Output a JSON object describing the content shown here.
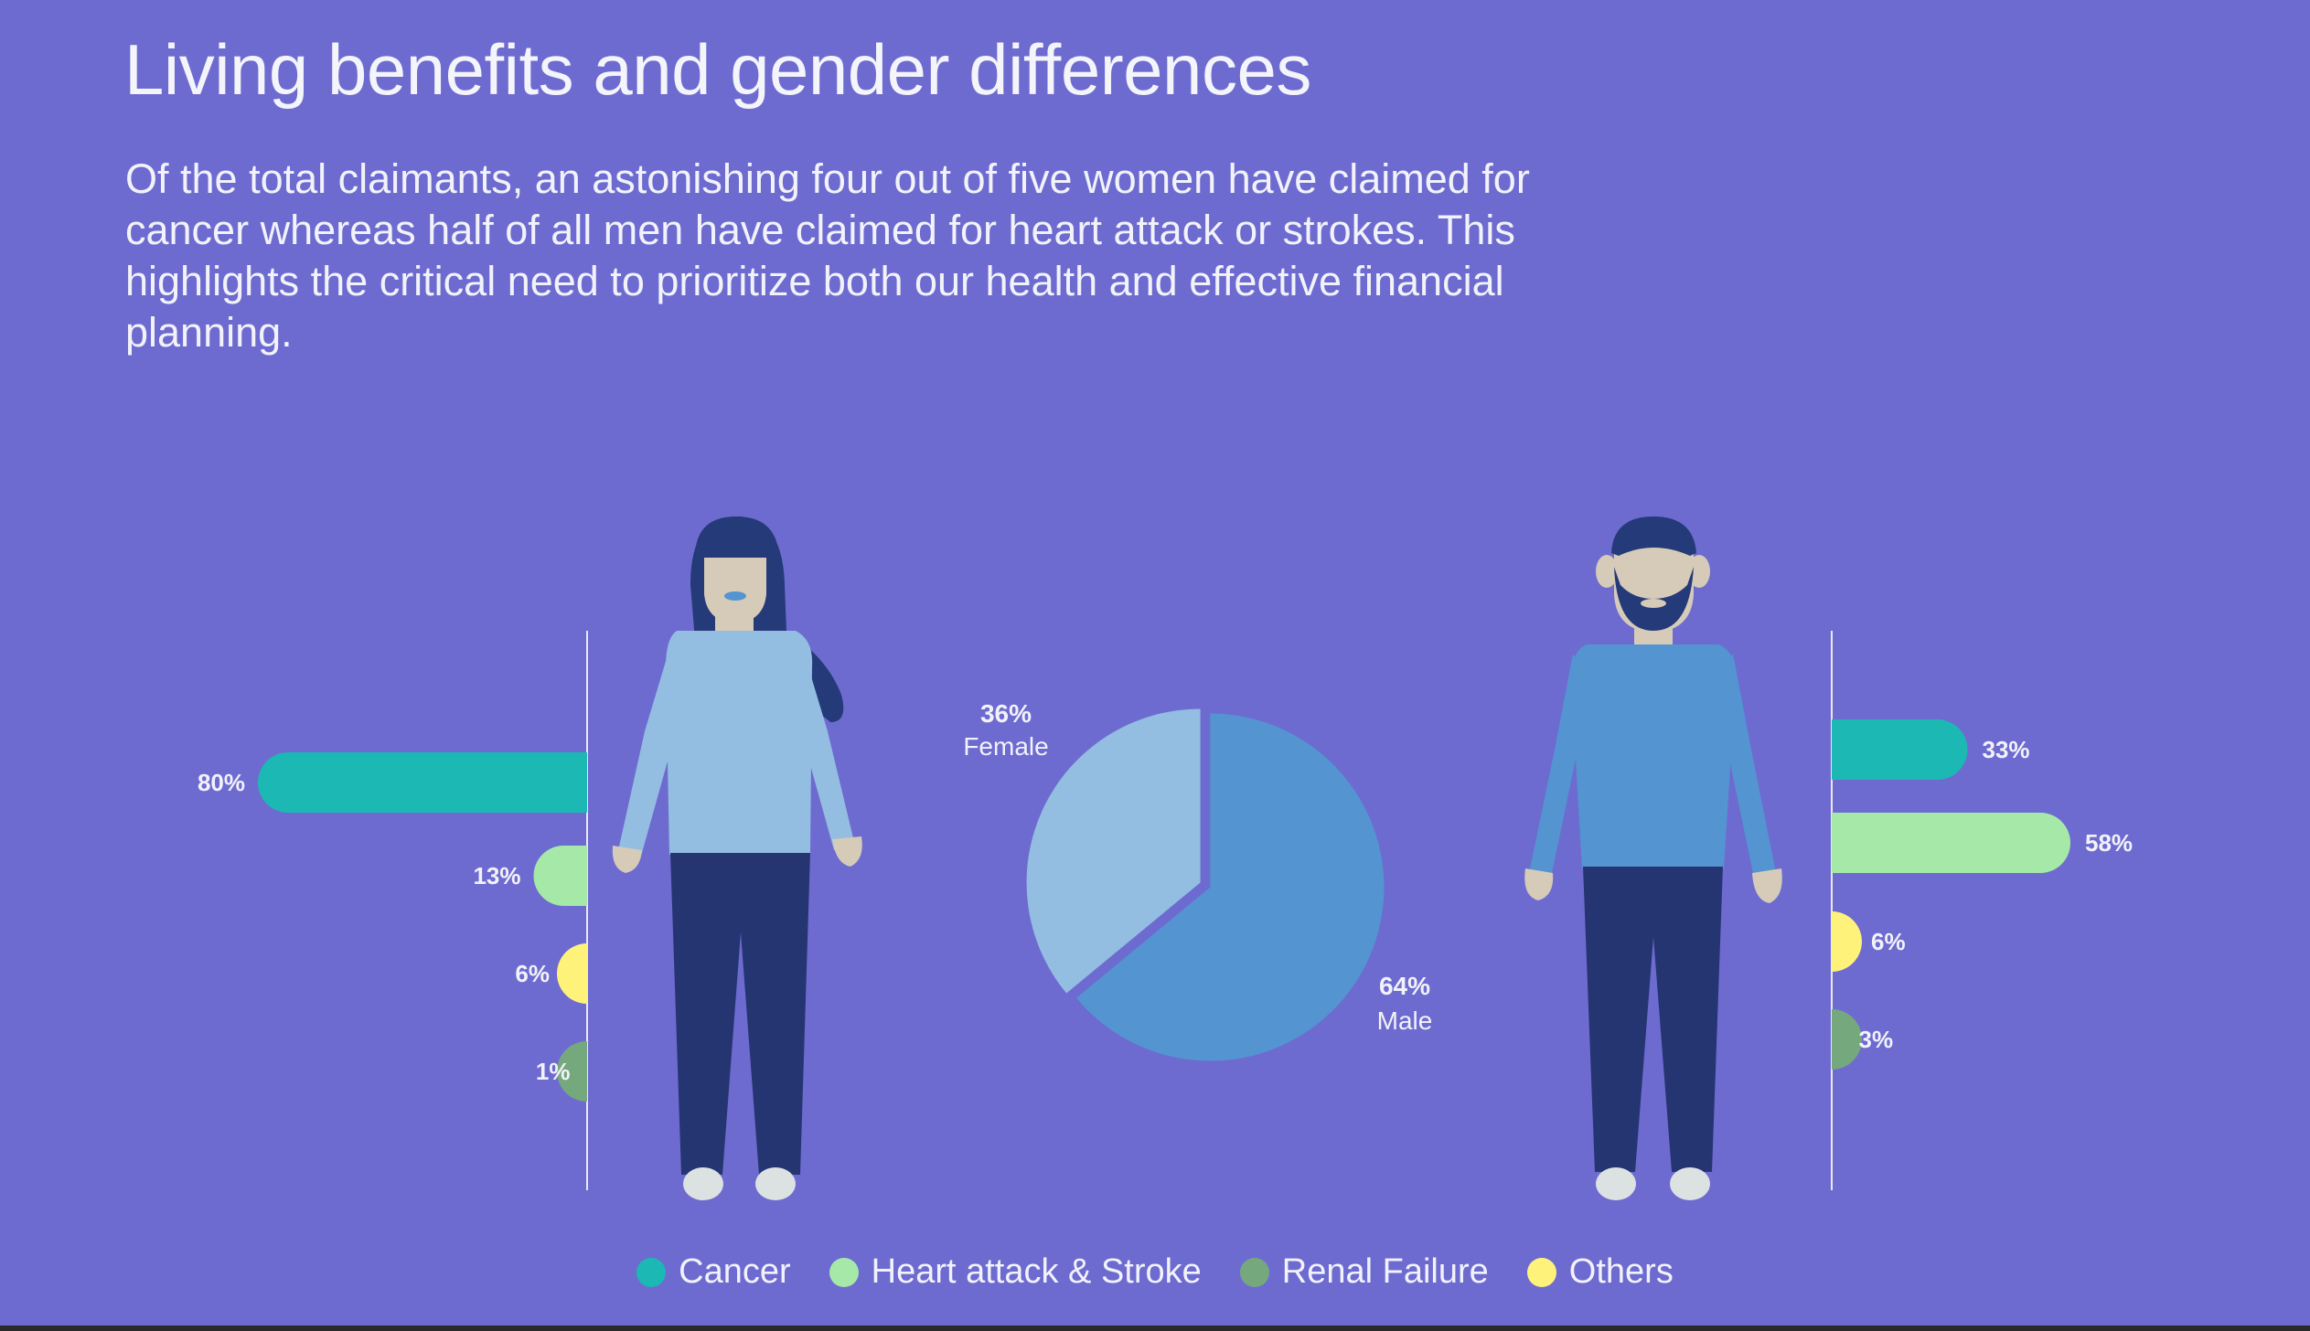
{
  "header": {
    "title": "Living benefits and gender differences",
    "intro": "Of the total claimants, an astonishing four out of five women have claimed for cancer whereas half of all men have claimed for heart attack or strokes. This highlights the critical need to prioritize both our health and effective financial planning."
  },
  "colors": {
    "background": "#6e6bd0",
    "cancer": "#1bb8b4",
    "heart": "#a6e8a8",
    "renal": "#76a87e",
    "others": "#fff27a",
    "female_slice": "#93bde1",
    "male_slice": "#5394d1"
  },
  "chart_data": [
    {
      "type": "bar",
      "group": "Female",
      "categories": [
        "Cancer",
        "Heart attack & Stroke",
        "Others",
        "Renal Failure"
      ],
      "values": [
        80,
        13,
        6,
        1
      ],
      "labels": [
        "80%",
        "13%",
        "6%",
        "1%"
      ],
      "orientation": "horizontal",
      "direction": "right-to-left"
    },
    {
      "type": "pie",
      "slices": [
        {
          "name": "Female",
          "value": 36,
          "label": "36%"
        },
        {
          "name": "Male",
          "value": 64,
          "label": "64%"
        }
      ]
    },
    {
      "type": "bar",
      "group": "Male",
      "categories": [
        "Cancer",
        "Heart attack & Stroke",
        "Others",
        "Renal Failure"
      ],
      "values": [
        33,
        58,
        6,
        3
      ],
      "labels": [
        "33%",
        "58%",
        "6%",
        "3%"
      ],
      "orientation": "horizontal",
      "direction": "left-to-right"
    }
  ],
  "legend": [
    {
      "label": "Cancer",
      "color": "#1bb8b4"
    },
    {
      "label": "Heart attack & Stroke",
      "color": "#a6e8a8"
    },
    {
      "label": "Renal Failure",
      "color": "#76a87e"
    },
    {
      "label": "Others",
      "color": "#fff27a"
    }
  ]
}
